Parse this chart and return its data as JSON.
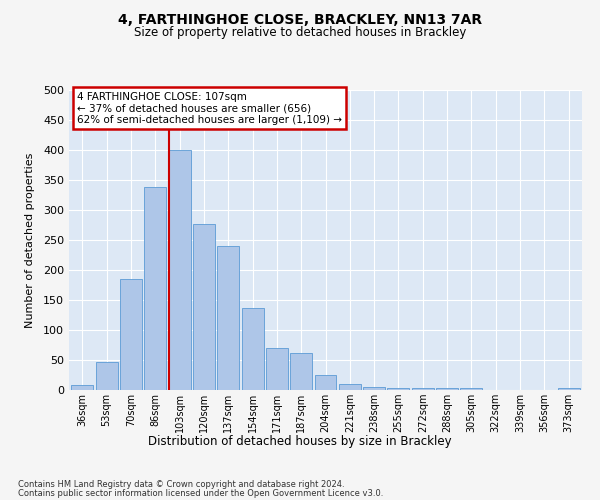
{
  "title": "4, FARTHINGHOE CLOSE, BRACKLEY, NN13 7AR",
  "subtitle": "Size of property relative to detached houses in Brackley",
  "xlabel": "Distribution of detached houses by size in Brackley",
  "ylabel": "Number of detached properties",
  "categories": [
    "36sqm",
    "53sqm",
    "70sqm",
    "86sqm",
    "103sqm",
    "120sqm",
    "137sqm",
    "154sqm",
    "171sqm",
    "187sqm",
    "204sqm",
    "221sqm",
    "238sqm",
    "255sqm",
    "272sqm",
    "288sqm",
    "305sqm",
    "322sqm",
    "339sqm",
    "356sqm",
    "373sqm"
  ],
  "values": [
    8,
    46,
    185,
    338,
    400,
    276,
    240,
    136,
    70,
    62,
    25,
    10,
    5,
    4,
    3,
    3,
    3,
    0,
    0,
    0,
    4
  ],
  "bar_color": "#aec6e8",
  "bar_edge_color": "#5b9bd5",
  "annotation_line1": "4 FARTHINGHOE CLOSE: 107sqm",
  "annotation_line2": "← 37% of detached houses are smaller (656)",
  "annotation_line3": "62% of semi-detached houses are larger (1,109) →",
  "annotation_box_facecolor": "#ffffff",
  "annotation_box_edgecolor": "#cc0000",
  "red_line_color": "#cc0000",
  "ylim": [
    0,
    500
  ],
  "yticks": [
    0,
    50,
    100,
    150,
    200,
    250,
    300,
    350,
    400,
    450,
    500
  ],
  "bg_color": "#dde8f5",
  "fig_bg_color": "#f5f5f5",
  "footnote1": "Contains HM Land Registry data © Crown copyright and database right 2024.",
  "footnote2": "Contains public sector information licensed under the Open Government Licence v3.0."
}
